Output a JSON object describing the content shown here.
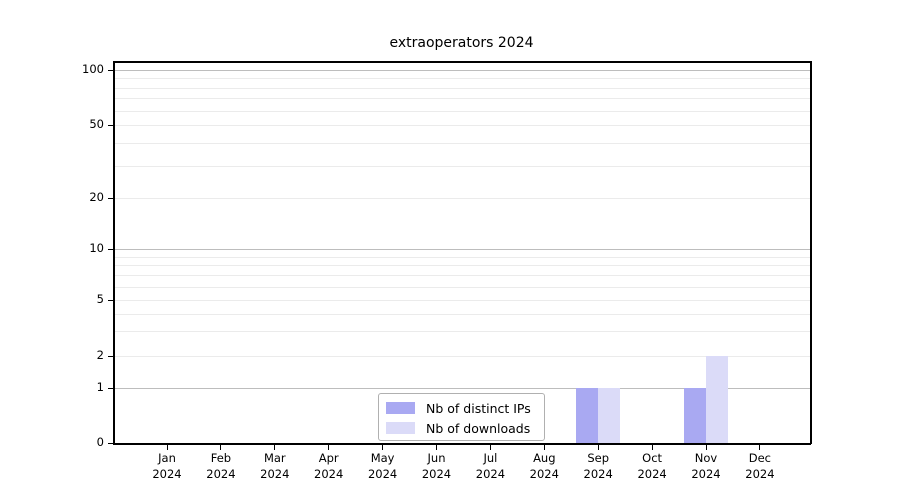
{
  "chart_data": {
    "type": "bar",
    "title": "extraoperators 2024",
    "xlabel": "",
    "ylabel": "",
    "categories": [
      "Jan",
      "Feb",
      "Mar",
      "Apr",
      "May",
      "Jun",
      "Jul",
      "Aug",
      "Sep",
      "Oct",
      "Nov",
      "Dec"
    ],
    "category_year": "2024",
    "series": [
      {
        "key": "distinct-ips",
        "name": "Nb of distinct IPs",
        "color": "#a9a9f2",
        "values": [
          0,
          0,
          0,
          0,
          0,
          0,
          0,
          0,
          1,
          0,
          1,
          0
        ]
      },
      {
        "key": "downloads",
        "name": "Nb of downloads",
        "color": "#dbdbf8",
        "values": [
          0,
          0,
          0,
          0,
          0,
          0,
          0,
          0,
          1,
          0,
          2,
          0
        ]
      }
    ],
    "y_axis": {
      "scale": "symlog",
      "tick_labels": [
        "0",
        "1",
        "2",
        "5",
        "10",
        "20",
        "50",
        "100"
      ],
      "tick_values": [
        0,
        1,
        2,
        5,
        10,
        20,
        50,
        100
      ],
      "major_gridline_values": [
        1,
        10,
        100
      ],
      "minor_gridline_values": [
        2,
        3,
        4,
        5,
        6,
        7,
        8,
        9,
        20,
        30,
        40,
        50,
        60,
        70,
        80,
        90
      ],
      "ylim": [
        0,
        130
      ]
    },
    "grid": true,
    "legend_position": "lower-center-inside",
    "colors": {
      "major_grid": "#bdbdbd",
      "minor_grid": "#ebebeb",
      "axis": "#000000",
      "legend_border": "#b0b0b0",
      "background": "#ffffff"
    }
  }
}
